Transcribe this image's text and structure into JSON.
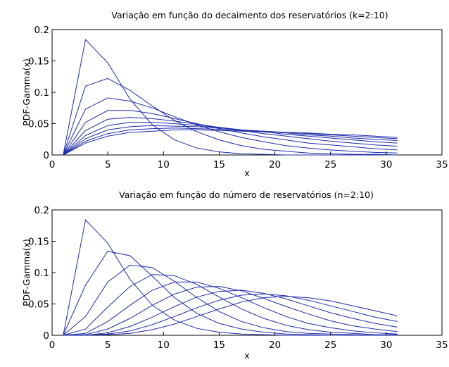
{
  "chart_data": [
    {
      "type": "line",
      "title": "Variação em função do decaimento dos reservatórios (k=2:10)",
      "xlabel": "x",
      "ylabel": "PDF-Gamma(x)",
      "xlim": [
        0,
        35
      ],
      "ylim": [
        0,
        0.2
      ],
      "xticks": [
        "0",
        "5",
        "10",
        "15",
        "20",
        "25",
        "30",
        "35"
      ],
      "yticks": [
        "0",
        "0.05",
        "0.1",
        "0.15",
        "0.2"
      ],
      "x": [
        1,
        3,
        5,
        7,
        9,
        11,
        13,
        15,
        17,
        19,
        21,
        23,
        25,
        27,
        29,
        31
      ],
      "color": "#1d2aa8",
      "series": [
        {
          "values": [
            0.0,
            0.184,
            0.147,
            0.089,
            0.048,
            0.024,
            0.011,
            0.005,
            0.002,
            0.001,
            0.0,
            0.0,
            0.0,
            0.0,
            0.0,
            0.0
          ]
        },
        {
          "values": [
            0.0,
            0.11,
            0.122,
            0.103,
            0.078,
            0.055,
            0.037,
            0.024,
            0.015,
            0.009,
            0.006,
            0.003,
            0.002,
            0.001,
            0.001,
            0.0
          ]
        },
        {
          "values": [
            0.0,
            0.073,
            0.091,
            0.086,
            0.075,
            0.061,
            0.048,
            0.037,
            0.028,
            0.021,
            0.015,
            0.011,
            0.008,
            0.006,
            0.004,
            0.003
          ]
        },
        {
          "values": [
            0.0,
            0.052,
            0.071,
            0.071,
            0.066,
            0.058,
            0.05,
            0.042,
            0.035,
            0.029,
            0.024,
            0.019,
            0.016,
            0.013,
            0.01,
            0.008
          ]
        },
        {
          "values": [
            0.0,
            0.039,
            0.057,
            0.06,
            0.058,
            0.054,
            0.049,
            0.044,
            0.039,
            0.034,
            0.03,
            0.026,
            0.022,
            0.019,
            0.016,
            0.014
          ]
        },
        {
          "values": [
            0.0,
            0.031,
            0.047,
            0.052,
            0.052,
            0.05,
            0.047,
            0.044,
            0.04,
            0.037,
            0.033,
            0.03,
            0.027,
            0.024,
            0.021,
            0.019
          ]
        },
        {
          "values": [
            0.0,
            0.026,
            0.04,
            0.045,
            0.047,
            0.046,
            0.045,
            0.043,
            0.04,
            0.038,
            0.035,
            0.032,
            0.03,
            0.027,
            0.025,
            0.023
          ]
        },
        {
          "values": [
            0.0,
            0.022,
            0.034,
            0.04,
            0.042,
            0.043,
            0.042,
            0.041,
            0.039,
            0.038,
            0.036,
            0.034,
            0.032,
            0.03,
            0.028,
            0.026
          ]
        },
        {
          "values": [
            0.0,
            0.019,
            0.03,
            0.036,
            0.038,
            0.04,
            0.04,
            0.039,
            0.038,
            0.037,
            0.036,
            0.035,
            0.033,
            0.032,
            0.03,
            0.028
          ]
        }
      ]
    },
    {
      "type": "line",
      "title": "Variação em função do número de reservatórios (n=2:10)",
      "xlabel": "x",
      "ylabel": "PDF-Gamma(x)",
      "xlim": [
        0,
        35
      ],
      "ylim": [
        0,
        0.2
      ],
      "xticks": [
        "0",
        "5",
        "10",
        "15",
        "20",
        "25",
        "30",
        "35"
      ],
      "yticks": [
        "0",
        "0.05",
        "0.1",
        "0.15",
        "0.2"
      ],
      "x": [
        1,
        3,
        5,
        7,
        9,
        11,
        13,
        15,
        17,
        19,
        21,
        23,
        25,
        27,
        29,
        31
      ],
      "color": "#1d2aa8",
      "series": [
        {
          "values": [
            0.0,
            0.184,
            0.147,
            0.089,
            0.048,
            0.024,
            0.011,
            0.005,
            0.002,
            0.001,
            0.0,
            0.0,
            0.0,
            0.0,
            0.0,
            0.0
          ]
        },
        {
          "values": [
            0.0,
            0.08,
            0.134,
            0.127,
            0.094,
            0.06,
            0.035,
            0.019,
            0.01,
            0.005,
            0.002,
            0.001,
            0.0,
            0.0,
            0.0,
            0.0
          ]
        },
        {
          "values": [
            0.0,
            0.03,
            0.085,
            0.112,
            0.108,
            0.086,
            0.06,
            0.038,
            0.022,
            0.012,
            0.006,
            0.003,
            0.002,
            0.001,
            0.0,
            0.0
          ]
        },
        {
          "values": [
            0.0,
            0.01,
            0.045,
            0.078,
            0.097,
            0.095,
            0.081,
            0.061,
            0.042,
            0.027,
            0.016,
            0.009,
            0.005,
            0.003,
            0.001,
            0.001
          ]
        },
        {
          "values": [
            0.0,
            0.003,
            0.022,
            0.048,
            0.072,
            0.085,
            0.085,
            0.075,
            0.06,
            0.044,
            0.03,
            0.019,
            0.012,
            0.007,
            0.004,
            0.002
          ]
        },
        {
          "values": [
            0.0,
            0.001,
            0.01,
            0.027,
            0.048,
            0.066,
            0.077,
            0.078,
            0.071,
            0.059,
            0.046,
            0.034,
            0.023,
            0.015,
            0.01,
            0.006
          ]
        },
        {
          "values": [
            0.0,
            0.0,
            0.004,
            0.014,
            0.029,
            0.046,
            0.061,
            0.07,
            0.072,
            0.067,
            0.058,
            0.047,
            0.036,
            0.027,
            0.019,
            0.013
          ]
        },
        {
          "values": [
            0.0,
            0.0,
            0.002,
            0.007,
            0.017,
            0.03,
            0.044,
            0.056,
            0.064,
            0.066,
            0.063,
            0.056,
            0.047,
            0.038,
            0.029,
            0.022
          ]
        },
        {
          "values": [
            0.0,
            0.0,
            0.001,
            0.003,
            0.009,
            0.018,
            0.03,
            0.042,
            0.053,
            0.06,
            0.062,
            0.06,
            0.055,
            0.047,
            0.039,
            0.031
          ]
        }
      ]
    }
  ]
}
